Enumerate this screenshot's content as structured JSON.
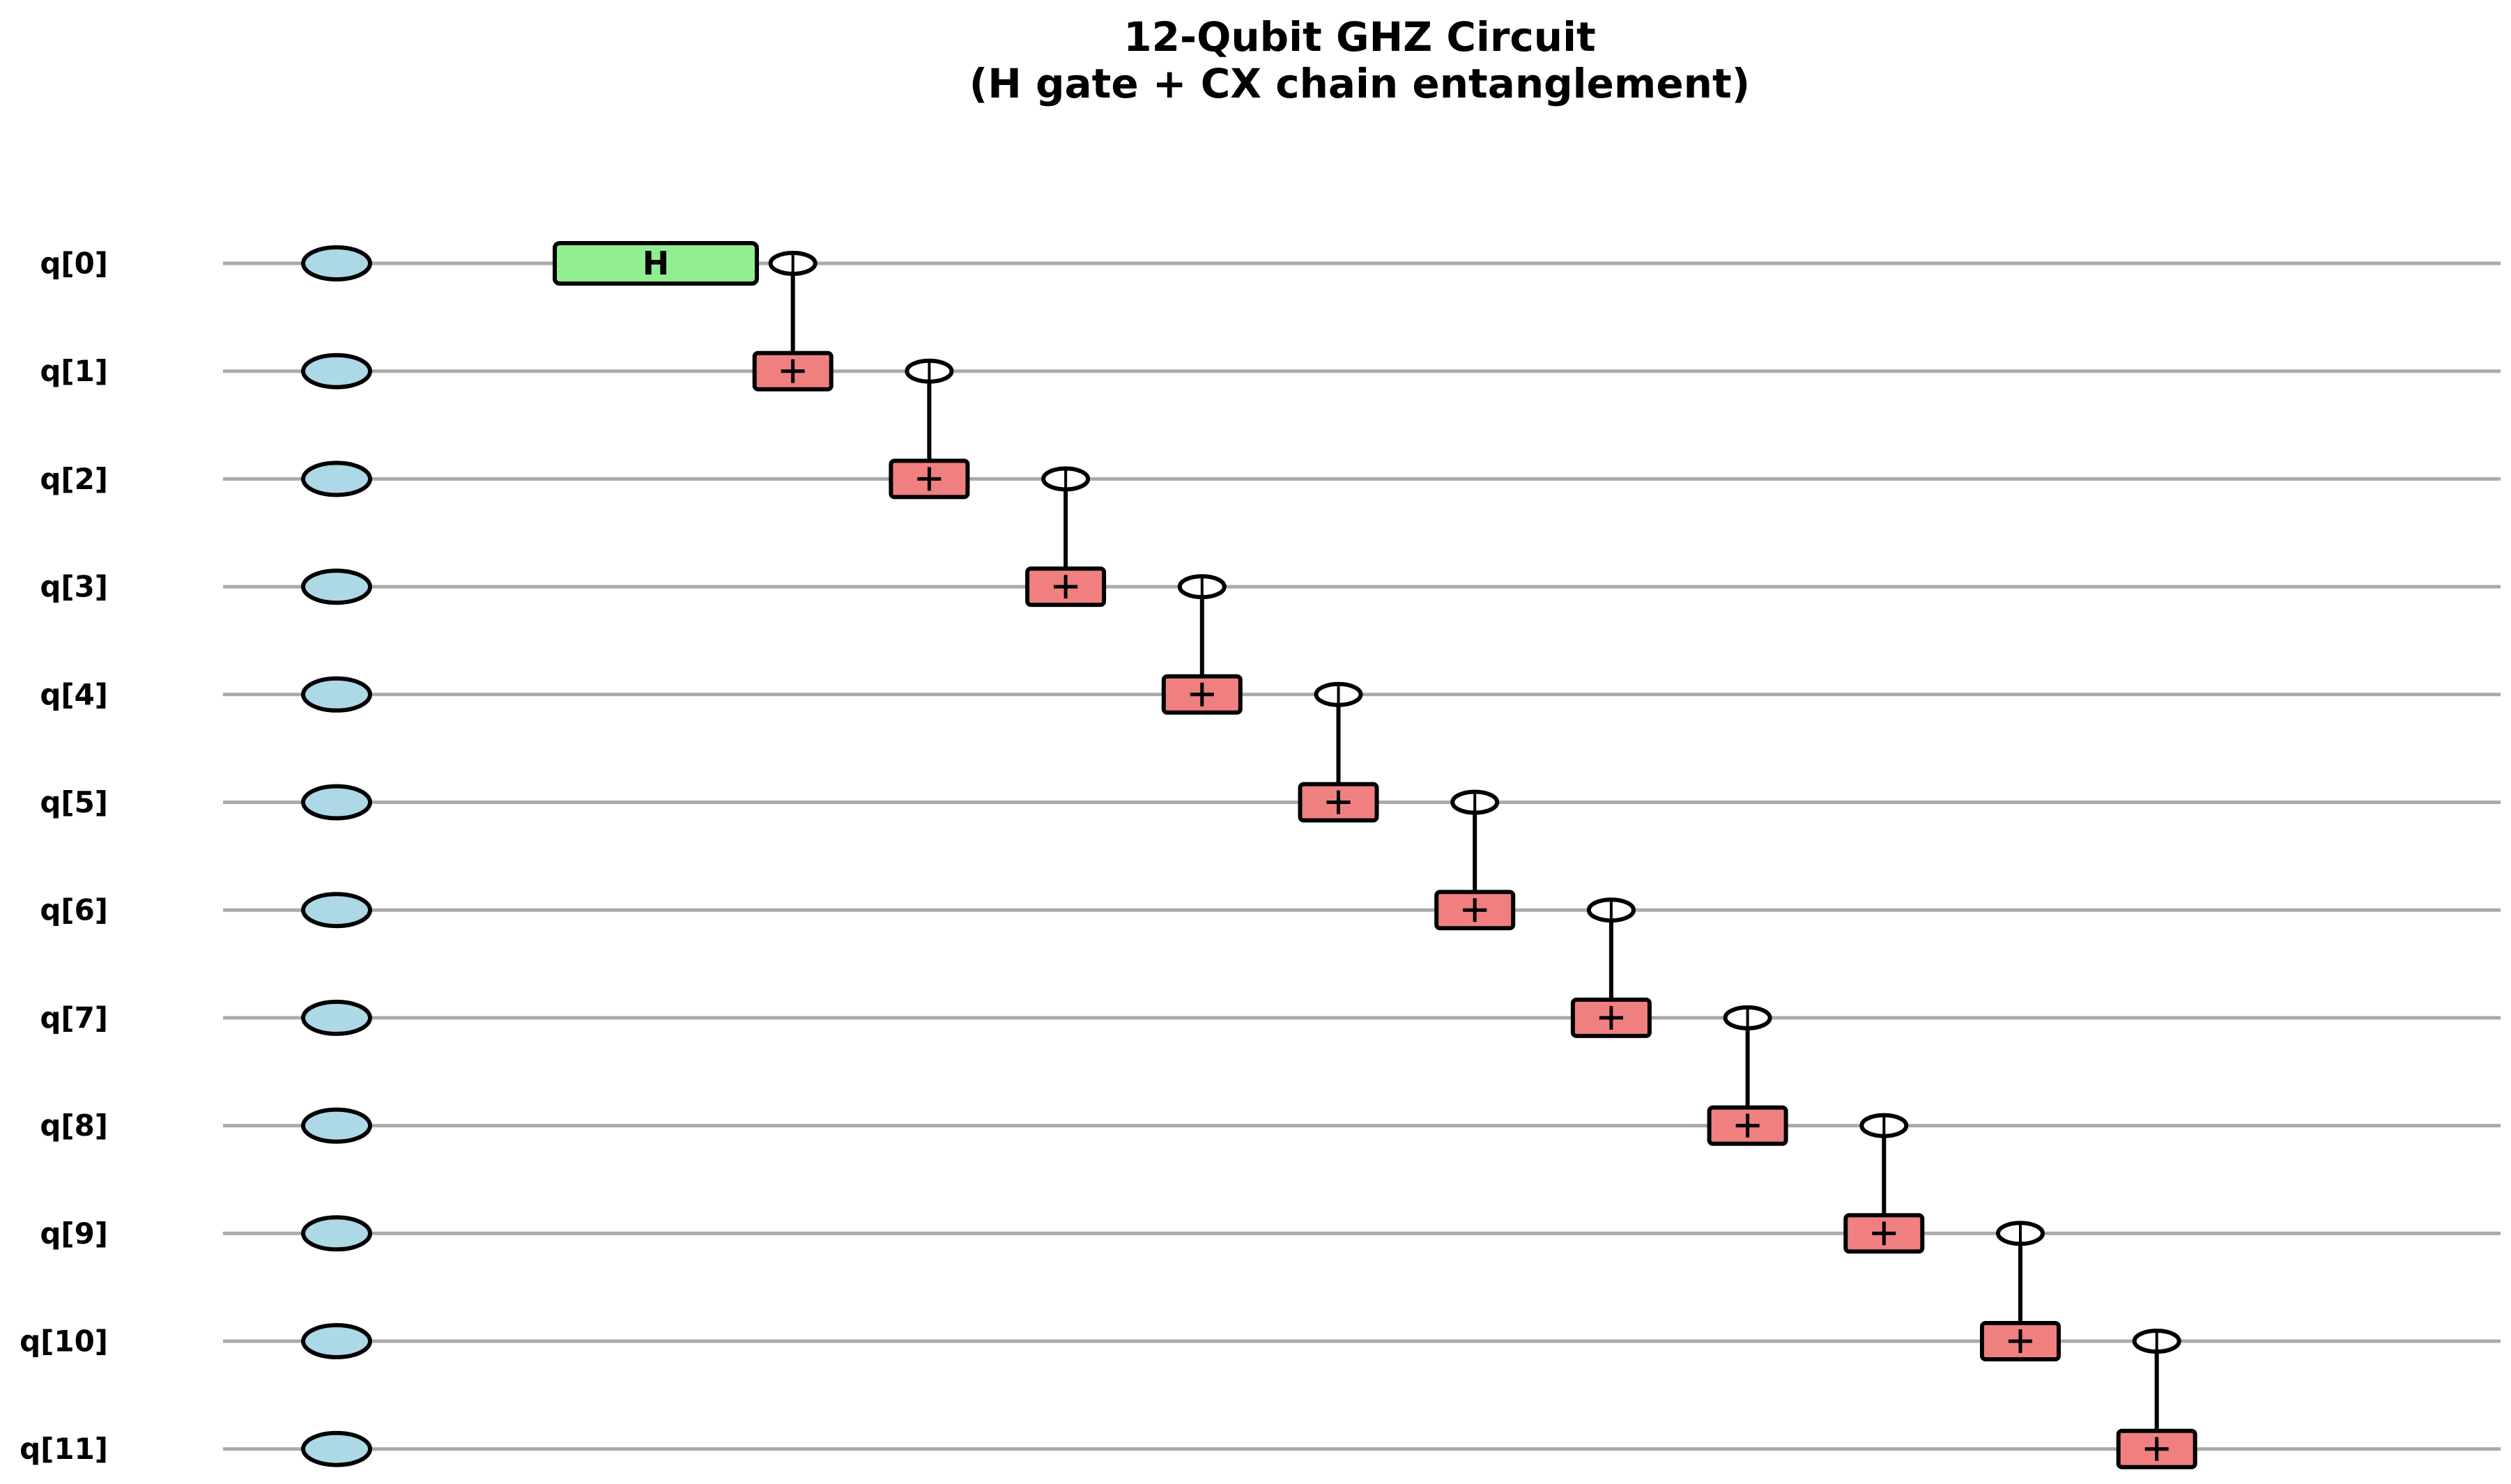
{
  "title": {
    "line1": "12-Qubit GHZ Circuit",
    "line2": "(H gate + CX chain entanglement)"
  },
  "qubits": [
    "q[0]",
    "q[1]",
    "q[2]",
    "q[3]",
    "q[4]",
    "q[5]",
    "q[6]",
    "q[7]",
    "q[8]",
    "q[9]",
    "q[10]",
    "q[11]"
  ],
  "gates": [
    {
      "type": "H",
      "label": "H",
      "target": 0,
      "step": 0
    },
    {
      "type": "CX",
      "control": 0,
      "target": 1,
      "step": 1
    },
    {
      "type": "CX",
      "control": 1,
      "target": 2,
      "step": 2
    },
    {
      "type": "CX",
      "control": 2,
      "target": 3,
      "step": 3
    },
    {
      "type": "CX",
      "control": 3,
      "target": 4,
      "step": 4
    },
    {
      "type": "CX",
      "control": 4,
      "target": 5,
      "step": 5
    },
    {
      "type": "CX",
      "control": 5,
      "target": 6,
      "step": 6
    },
    {
      "type": "CX",
      "control": 6,
      "target": 7,
      "step": 7
    },
    {
      "type": "CX",
      "control": 7,
      "target": 8,
      "step": 8
    },
    {
      "type": "CX",
      "control": 8,
      "target": 9,
      "step": 9
    },
    {
      "type": "CX",
      "control": 9,
      "target": 10,
      "step": 10
    },
    {
      "type": "CX",
      "control": 10,
      "target": 11,
      "step": 11
    }
  ],
  "colors": {
    "wire": "#aaaaaa",
    "init_state": "#add8e6",
    "h_gate": "#90ee90",
    "cx_target": "#f08080",
    "outline": "#000000"
  }
}
